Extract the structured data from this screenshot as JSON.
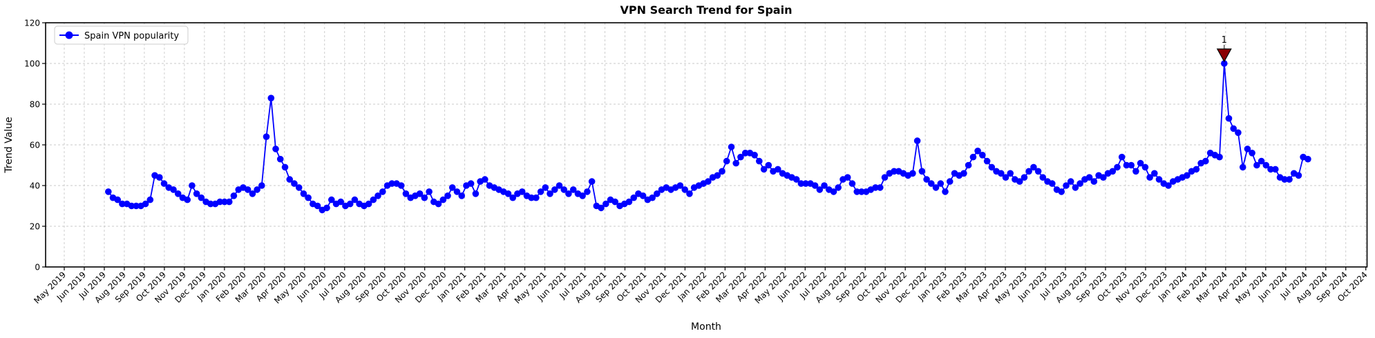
{
  "chart_data": {
    "type": "line",
    "title": "VPN Search Trend for Spain",
    "xlabel": "Month",
    "ylabel": "Trend Value",
    "ylim": [
      0,
      120
    ],
    "yticks": [
      0,
      20,
      40,
      60,
      80,
      100,
      120
    ],
    "grid": true,
    "x_tick_labels": [
      "May 2019",
      "Jun 2019",
      "Jul 2019",
      "Aug 2019",
      "Sep 2019",
      "Oct 2019",
      "Nov 2019",
      "Dec 2019",
      "Jan 2020",
      "Feb 2020",
      "Mar 2020",
      "Apr 2020",
      "May 2020",
      "Jun 2020",
      "Jul 2020",
      "Aug 2020",
      "Sep 2020",
      "Oct 2020",
      "Nov 2020",
      "Dec 2020",
      "Jan 2021",
      "Feb 2021",
      "Mar 2021",
      "Apr 2021",
      "May 2021",
      "Jun 2021",
      "Jul 2021",
      "Aug 2021",
      "Sep 2021",
      "Oct 2021",
      "Nov 2021",
      "Dec 2021",
      "Jan 2022",
      "Feb 2022",
      "Mar 2022",
      "Apr 2022",
      "May 2022",
      "Jun 2022",
      "Jul 2022",
      "Aug 2022",
      "Sep 2022",
      "Oct 2022",
      "Nov 2022",
      "Dec 2022",
      "Jan 2023",
      "Feb 2023",
      "Mar 2023",
      "Apr 2023",
      "May 2023",
      "Jun 2023",
      "Jul 2023",
      "Aug 2023",
      "Sep 2023",
      "Oct 2023",
      "Nov 2023",
      "Dec 2023",
      "Jan 2024",
      "Feb 2024",
      "Mar 2024",
      "Apr 2024",
      "May 2024",
      "Jun 2024",
      "Jul 2024",
      "Aug 2024",
      "Sep 2024",
      "Oct 2024"
    ],
    "legend": {
      "position": "upper-left",
      "entries": [
        {
          "label": "Spain VPN popularity",
          "color": "#0000ff",
          "marker": "circle"
        }
      ]
    },
    "series": [
      {
        "name": "Spain VPN popularity",
        "color": "#0000ff",
        "marker": "circle",
        "frequency": "weekly",
        "x_start_tick": 2.2,
        "x_step_ticks": 0.2322,
        "values": [
          37,
          34,
          33,
          31,
          31,
          30,
          30,
          30,
          31,
          33,
          45,
          44,
          41,
          39,
          38,
          36,
          34,
          33,
          40,
          36,
          34,
          32,
          31,
          31,
          32,
          32,
          32,
          35,
          38,
          39,
          38,
          36,
          38,
          40,
          64,
          83,
          58,
          53,
          49,
          43,
          41,
          39,
          36,
          34,
          31,
          30,
          28,
          29,
          33,
          31,
          32,
          30,
          31,
          33,
          31,
          30,
          31,
          33,
          35,
          37,
          40,
          41,
          41,
          40,
          36,
          34,
          35,
          36,
          34,
          37,
          32,
          31,
          33,
          35,
          39,
          37,
          35,
          40,
          41,
          36,
          42,
          43,
          40,
          39,
          38,
          37,
          36,
          34,
          36,
          37,
          35,
          34,
          34,
          37,
          39,
          36,
          38,
          40,
          38,
          36,
          38,
          36,
          35,
          37,
          42,
          30,
          29,
          31,
          33,
          32,
          30,
          31,
          32,
          34,
          36,
          35,
          33,
          34,
          36,
          38,
          39,
          38,
          39,
          40,
          38,
          36,
          39,
          40,
          41,
          42,
          44,
          45,
          47,
          52,
          59,
          51,
          54,
          56,
          56,
          55,
          52,
          48,
          50,
          47,
          48,
          46,
          45,
          44,
          43,
          41,
          41,
          41,
          40,
          38,
          40,
          38,
          37,
          39,
          43,
          44,
          41,
          37,
          37,
          37,
          38,
          39,
          39,
          44,
          46,
          47,
          47,
          46,
          45,
          46,
          62,
          47,
          43,
          41,
          39,
          41,
          37,
          42,
          46,
          45,
          46,
          50,
          54,
          57,
          55,
          52,
          49,
          47,
          46,
          44,
          46,
          43,
          42,
          44,
          47,
          49,
          47,
          44,
          42,
          41,
          38,
          37,
          40,
          42,
          39,
          41,
          43,
          44,
          42,
          45,
          44,
          46,
          47,
          49,
          54,
          50,
          50,
          47,
          51,
          49,
          44,
          46,
          43,
          41,
          40,
          42,
          43,
          44,
          45,
          47,
          48,
          51,
          52,
          56,
          55,
          54,
          100,
          73,
          68,
          66,
          49,
          58,
          56,
          50,
          52,
          50,
          48,
          48,
          44,
          43,
          43,
          46,
          45,
          54,
          53
        ]
      }
    ],
    "annotation": {
      "text": "1",
      "color": "#8b0000",
      "marker": "triangle-down",
      "point_index": 240,
      "at_value": 100
    },
    "colors": {
      "line": "#0000ff",
      "annotation": "#8b0000",
      "grid": "#c9c9c9",
      "axis": "#000000",
      "background": "#ffffff"
    }
  }
}
